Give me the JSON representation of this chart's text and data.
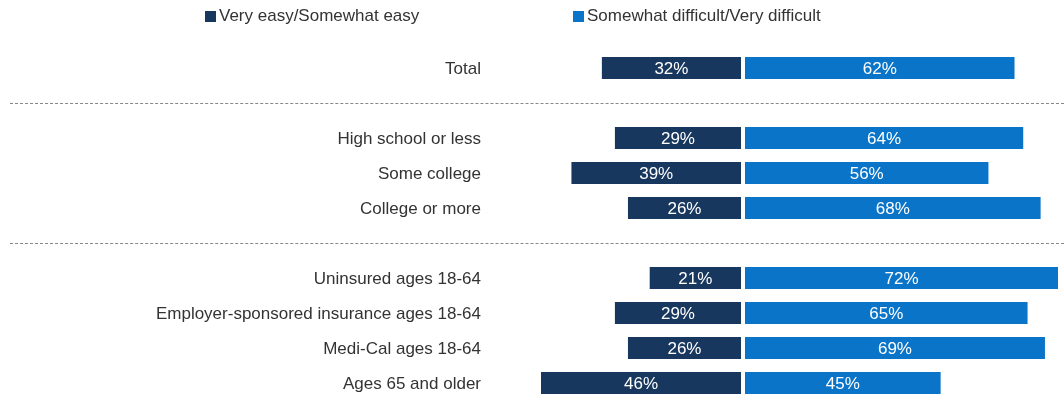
{
  "chart_data": [
    {
      "type": "bar",
      "orientation": "horizontal",
      "legend": "top",
      "tick_labels": "y",
      "categories": [
        "Total",
        null,
        "High school or less",
        "Some college",
        "College or more",
        null,
        "Uninsured ages 18-64",
        "Employer-sponsored insurance ages 18-64",
        "Medi-Cal ages 18-64",
        "Ages 65 and older"
      ],
      "series": [
        {
          "name": "Very easy/Somewhat easy",
          "color": "#17375e",
          "values": [
            32,
            null,
            29,
            39,
            26,
            null,
            21,
            29,
            26,
            46
          ],
          "value_labels": [
            "32%",
            null,
            "29%",
            "39%",
            "26%",
            null,
            "21%",
            "29%",
            "26%",
            "46%"
          ]
        }
      ]
    },
    {
      "type": "bar",
      "orientation": "horizontal",
      "legend": "top",
      "tick_labels": false,
      "categories": [
        null,
        null,
        null,
        null,
        null,
        null,
        null,
        null,
        null,
        null
      ],
      "series": [
        {
          "name": "Somewhat difficult/Very difficult",
          "color": "#0a74c8",
          "values": [
            62,
            null,
            64,
            56,
            68,
            null,
            72,
            65,
            69,
            45
          ],
          "value_labels": [
            "62%",
            null,
            "64%",
            "56%",
            "68%",
            null,
            "72%",
            "65%",
            "69%",
            "45%"
          ]
        }
      ]
    }
  ]
}
